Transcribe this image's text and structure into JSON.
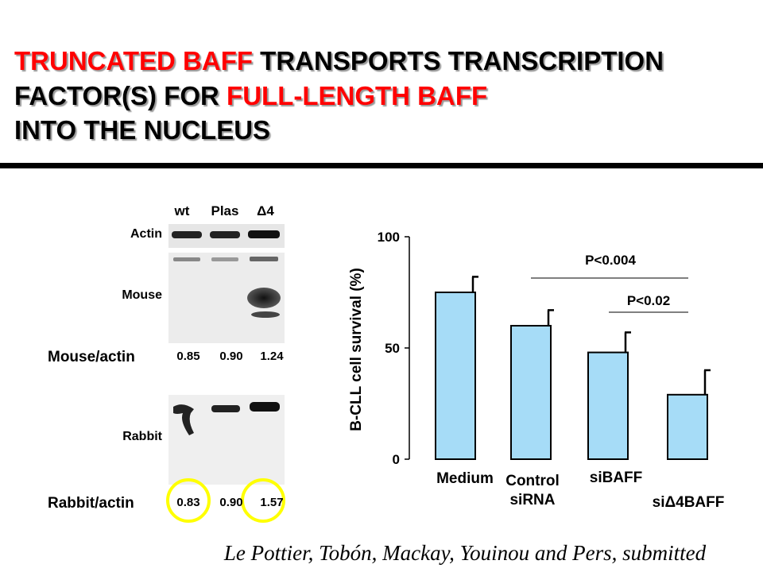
{
  "title_lines": [
    [
      {
        "text": "TRUNCATED BAFF",
        "color": "#ff0000"
      },
      {
        "text": " TRANSPORTS TRANSCRIPTION",
        "color": "#000000"
      }
    ],
    [
      {
        "text": "FACTOR(S) FOR ",
        "color": "#000000"
      },
      {
        "text": "FULL-LENGTH BAFF",
        "color": "#ff0000"
      }
    ],
    [
      {
        "text": "INTO THE NUCLEUS",
        "color": "#000000"
      }
    ]
  ],
  "blot": {
    "lanes": [
      "wt",
      "Plas",
      "Δ4"
    ],
    "rows": [
      "Actin",
      "Mouse",
      "Rabbit"
    ],
    "ratios": [
      {
        "label": "Mouse/actin",
        "values": [
          "0.85",
          "0.90",
          "1.24"
        ]
      },
      {
        "label": "Rabbit/actin",
        "values": [
          "0.83",
          "0.90",
          "1.57"
        ]
      }
    ]
  },
  "chart_data": {
    "type": "bar",
    "y_label": "B-CLL cell survival (%)",
    "categories": [
      "Medium",
      "Control siRNA",
      "siBAFF",
      "siΔ4BAFF"
    ],
    "values": [
      75,
      60,
      48,
      29
    ],
    "errors": [
      7,
      7,
      9,
      11
    ],
    "color": "#a6dcf7",
    "ylim": [
      0,
      100
    ],
    "yticks": [
      0,
      50,
      100
    ],
    "annotations": [
      "P<0.004",
      "P<0.02"
    ]
  },
  "citation": "Le Pottier, Tobón, Mackay, Youinou and Pers, submitted"
}
